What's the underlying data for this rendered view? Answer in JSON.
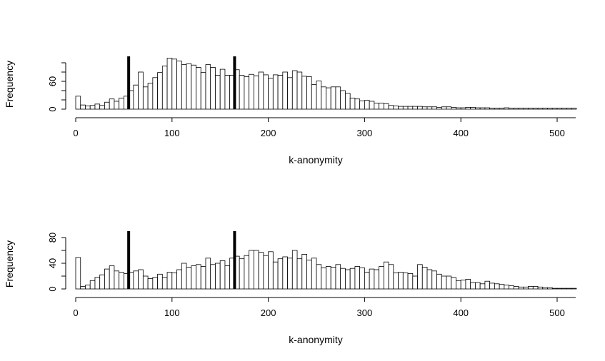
{
  "chart_data": [
    {
      "type": "bar",
      "subtype": "histogram",
      "title": "",
      "xlabel": "k-anonymity",
      "ylabel": "Frequency",
      "xlim": [
        0,
        520
      ],
      "ylim": [
        0,
        100
      ],
      "bin_width": 5,
      "x_ticks": [
        0,
        100,
        200,
        300,
        400,
        500
      ],
      "y_ticks": [
        0,
        20,
        40,
        60,
        80,
        100
      ],
      "y_tick_labels": [
        "0",
        "",
        "",
        "60",
        "",
        ""
      ],
      "vertical_lines": [
        55,
        165
      ],
      "grid": false,
      "values": [
        28,
        9,
        7,
        8,
        11,
        8,
        15,
        22,
        17,
        24,
        28,
        40,
        52,
        80,
        48,
        56,
        68,
        79,
        93,
        110,
        108,
        104,
        96,
        98,
        95,
        90,
        79,
        96,
        90,
        73,
        86,
        73,
        73,
        85,
        73,
        70,
        75,
        72,
        80,
        74,
        67,
        74,
        73,
        80,
        68,
        83,
        80,
        71,
        70,
        53,
        61,
        48,
        46,
        48,
        48,
        40,
        34,
        24,
        22,
        18,
        19,
        17,
        13,
        13,
        12,
        8,
        7,
        6,
        6,
        6,
        6,
        6,
        5,
        5,
        5,
        4,
        5,
        5,
        4,
        3,
        3,
        4,
        4,
        3,
        3,
        3,
        2,
        2,
        2,
        3,
        2,
        2,
        2,
        2,
        2,
        2,
        2,
        2,
        2,
        2,
        2,
        2,
        2,
        2
      ]
    },
    {
      "type": "bar",
      "subtype": "histogram",
      "title": "",
      "xlabel": "k-anonymity",
      "ylabel": "Frequency",
      "xlim": [
        0,
        520
      ],
      "ylim": [
        0,
        80
      ],
      "bin_width": 5,
      "x_ticks": [
        0,
        100,
        200,
        300,
        400,
        500
      ],
      "y_ticks": [
        0,
        20,
        40,
        60,
        80
      ],
      "y_tick_labels": [
        "0",
        "",
        "40",
        "",
        "80"
      ],
      "vertical_lines": [
        55,
        165
      ],
      "grid": false,
      "values": [
        49,
        4,
        6,
        13,
        18,
        22,
        31,
        36,
        28,
        26,
        24,
        26,
        28,
        30,
        20,
        16,
        18,
        23,
        18,
        26,
        25,
        30,
        40,
        34,
        36,
        38,
        35,
        48,
        38,
        40,
        44,
        36,
        48,
        51,
        47,
        52,
        60,
        60,
        57,
        52,
        58,
        42,
        47,
        50,
        48,
        60,
        47,
        54,
        45,
        48,
        38,
        33,
        35,
        34,
        38,
        32,
        30,
        32,
        35,
        33,
        26,
        31,
        30,
        35,
        42,
        38,
        25,
        26,
        25,
        24,
        20,
        38,
        34,
        30,
        28,
        23,
        20,
        20,
        18,
        13,
        14,
        15,
        10,
        10,
        8,
        12,
        9,
        8,
        7,
        6,
        5,
        4,
        3,
        3,
        4,
        4,
        3,
        2,
        2,
        1,
        1,
        1,
        1,
        1
      ]
    }
  ]
}
